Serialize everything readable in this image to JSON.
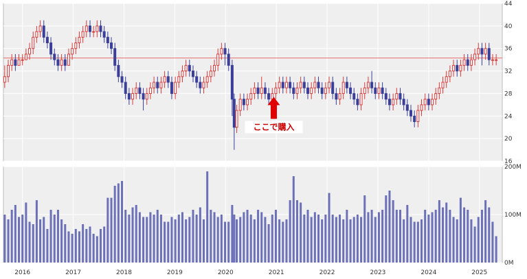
{
  "colors": {
    "panel_bg": "#efefef",
    "grid": "#ffffff",
    "up": "#d93a3a",
    "down": "#3a3f9a",
    "volume": "#6b70b8",
    "ref_line": "#e86b6b",
    "arrow": "#e00000",
    "annotation_text": "#cc0000"
  },
  "chart_data": [
    {
      "type": "candlestick",
      "title": "",
      "ylabel": "",
      "ylim": [
        16,
        44
      ],
      "y_ticks": [
        "16",
        "20",
        "24",
        "28",
        "32",
        "36",
        "40",
        "44"
      ],
      "x_ticks": [
        "2016",
        "2017",
        "2018",
        "2019",
        "2020",
        "2021",
        "2022",
        "2023",
        "2024",
        "2025"
      ],
      "x_range": [
        2015.625,
        2025.45
      ],
      "grid": true,
      "reference_line": 34.3,
      "annotation": {
        "text": "ここで購入",
        "x": 2020.95,
        "y_tip": 27.4
      },
      "candles": [
        [
          2015.65,
          30,
          31,
          33,
          29
        ],
        [
          2015.72,
          31,
          33,
          34,
          30
        ],
        [
          2015.79,
          33,
          34,
          35,
          32
        ],
        [
          2015.86,
          34,
          33,
          35,
          32
        ],
        [
          2015.93,
          33,
          34,
          35,
          33
        ],
        [
          2016.0,
          34,
          34,
          35,
          33
        ],
        [
          2016.07,
          34,
          35,
          36,
          34
        ],
        [
          2016.14,
          35,
          36,
          37,
          34
        ],
        [
          2016.21,
          36,
          38,
          39,
          35
        ],
        [
          2016.28,
          38,
          39,
          40,
          37
        ],
        [
          2016.35,
          39,
          40,
          41,
          38
        ],
        [
          2016.42,
          40,
          38,
          41,
          37
        ],
        [
          2016.49,
          38,
          37,
          39,
          36
        ],
        [
          2016.56,
          37,
          35,
          38,
          34
        ],
        [
          2016.63,
          35,
          34,
          36,
          33
        ],
        [
          2016.7,
          34,
          33,
          35,
          32
        ],
        [
          2016.77,
          33,
          34,
          35,
          32
        ],
        [
          2016.84,
          34,
          33,
          35,
          32
        ],
        [
          2016.91,
          33,
          35,
          36,
          33
        ],
        [
          2016.98,
          35,
          36,
          37,
          34
        ],
        [
          2017.05,
          36,
          37,
          38,
          35
        ],
        [
          2017.12,
          37,
          38,
          39,
          36
        ],
        [
          2017.19,
          38,
          39,
          40,
          37
        ],
        [
          2017.26,
          39,
          40,
          41,
          38
        ],
        [
          2017.33,
          40,
          39,
          41,
          38
        ],
        [
          2017.4,
          39,
          39,
          40,
          38
        ],
        [
          2017.47,
          39,
          40,
          41,
          38
        ],
        [
          2017.54,
          40,
          39,
          41,
          38
        ],
        [
          2017.61,
          39,
          38,
          40,
          37
        ],
        [
          2017.68,
          38,
          37,
          39,
          36
        ],
        [
          2017.75,
          37,
          36,
          38,
          35
        ],
        [
          2017.82,
          36,
          33,
          37,
          32
        ],
        [
          2017.89,
          33,
          31,
          34,
          30
        ],
        [
          2017.96,
          31,
          30,
          32,
          29
        ],
        [
          2018.03,
          30,
          28,
          31,
          27
        ],
        [
          2018.1,
          28,
          27,
          29,
          26
        ],
        [
          2018.17,
          27,
          28,
          29,
          26
        ],
        [
          2018.24,
          28,
          29,
          30,
          27
        ],
        [
          2018.31,
          29,
          28,
          30,
          27
        ],
        [
          2018.38,
          28,
          27,
          29,
          25
        ],
        [
          2018.45,
          27,
          28,
          29,
          26
        ],
        [
          2018.52,
          28,
          29,
          30,
          27
        ],
        [
          2018.59,
          29,
          30,
          31,
          28
        ],
        [
          2018.66,
          30,
          29,
          31,
          28
        ],
        [
          2018.73,
          29,
          30,
          31,
          28
        ],
        [
          2018.8,
          30,
          31,
          32,
          29
        ],
        [
          2018.87,
          31,
          30,
          32,
          29
        ],
        [
          2018.94,
          30,
          28,
          31,
          27
        ],
        [
          2019.01,
          28,
          30,
          31,
          27
        ],
        [
          2019.08,
          30,
          31,
          32,
          29
        ],
        [
          2019.15,
          31,
          32,
          33,
          30
        ],
        [
          2019.22,
          32,
          33,
          34,
          31
        ],
        [
          2019.29,
          33,
          32,
          34,
          31
        ],
        [
          2019.36,
          32,
          31,
          33,
          30
        ],
        [
          2019.43,
          31,
          30,
          32,
          29
        ],
        [
          2019.5,
          30,
          29,
          31,
          28
        ],
        [
          2019.57,
          29,
          30,
          31,
          28
        ],
        [
          2019.64,
          30,
          31,
          32,
          29
        ],
        [
          2019.71,
          31,
          32,
          33,
          30
        ],
        [
          2019.78,
          32,
          33,
          34,
          31
        ],
        [
          2019.85,
          33,
          35,
          36,
          32
        ],
        [
          2019.92,
          35,
          36,
          37,
          34
        ],
        [
          2019.99,
          36,
          35,
          37,
          33
        ],
        [
          2020.06,
          35,
          33,
          36,
          32
        ],
        [
          2020.13,
          33,
          27,
          34,
          24
        ],
        [
          2020.17,
          27,
          22,
          28,
          18
        ],
        [
          2020.22,
          22,
          25,
          26,
          21
        ],
        [
          2020.29,
          25,
          27,
          28,
          24
        ],
        [
          2020.36,
          27,
          26,
          28,
          25
        ],
        [
          2020.43,
          26,
          27,
          28,
          25
        ],
        [
          2020.5,
          27,
          28,
          29,
          26
        ],
        [
          2020.57,
          28,
          29,
          30,
          27
        ],
        [
          2020.64,
          29,
          28,
          30,
          27
        ],
        [
          2020.71,
          28,
          29,
          31,
          27
        ],
        [
          2020.78,
          29,
          28,
          30,
          27
        ],
        [
          2020.85,
          28,
          27,
          29,
          26
        ],
        [
          2020.92,
          27,
          28,
          29,
          26
        ],
        [
          2020.99,
          28,
          29,
          30,
          27
        ],
        [
          2021.06,
          29,
          30,
          31,
          28
        ],
        [
          2021.13,
          30,
          29,
          31,
          28
        ],
        [
          2021.2,
          29,
          30,
          31,
          28
        ],
        [
          2021.27,
          30,
          29,
          31,
          28
        ],
        [
          2021.34,
          29,
          28,
          30,
          27
        ],
        [
          2021.41,
          28,
          29,
          30,
          27
        ],
        [
          2021.48,
          29,
          30,
          31,
          28
        ],
        [
          2021.55,
          30,
          29,
          31,
          28
        ],
        [
          2021.62,
          29,
          28,
          30,
          27
        ],
        [
          2021.69,
          28,
          29,
          30,
          27
        ],
        [
          2021.76,
          29,
          30,
          31,
          28
        ],
        [
          2021.83,
          30,
          29,
          31,
          28
        ],
        [
          2021.9,
          29,
          28,
          30,
          27
        ],
        [
          2021.97,
          28,
          29,
          30,
          27
        ],
        [
          2022.04,
          29,
          30,
          31,
          28
        ],
        [
          2022.11,
          30,
          28,
          31,
          27
        ],
        [
          2022.18,
          28,
          27,
          29,
          26
        ],
        [
          2022.25,
          27,
          28,
          29,
          26
        ],
        [
          2022.32,
          28,
          30,
          31,
          27
        ],
        [
          2022.39,
          30,
          29,
          31,
          28
        ],
        [
          2022.46,
          29,
          28,
          30,
          27
        ],
        [
          2022.53,
          28,
          27,
          29,
          26
        ],
        [
          2022.6,
          27,
          26,
          28,
          25
        ],
        [
          2022.67,
          26,
          28,
          29,
          25
        ],
        [
          2022.74,
          28,
          29,
          30,
          27
        ],
        [
          2022.81,
          29,
          30,
          31,
          28
        ],
        [
          2022.88,
          30,
          29,
          32,
          28
        ],
        [
          2022.95,
          29,
          28,
          30,
          27
        ],
        [
          2023.02,
          28,
          29,
          30,
          27
        ],
        [
          2023.09,
          29,
          28,
          30,
          27
        ],
        [
          2023.16,
          28,
          27,
          29,
          26
        ],
        [
          2023.23,
          27,
          26,
          28,
          25
        ],
        [
          2023.3,
          26,
          27,
          28,
          25
        ],
        [
          2023.37,
          27,
          28,
          29,
          26
        ],
        [
          2023.44,
          28,
          27,
          29,
          26
        ],
        [
          2023.51,
          27,
          26,
          28,
          25
        ],
        [
          2023.58,
          26,
          25,
          27,
          24
        ],
        [
          2023.65,
          25,
          24,
          26,
          23
        ],
        [
          2023.72,
          24,
          23,
          25,
          22
        ],
        [
          2023.79,
          23,
          25,
          26,
          22
        ],
        [
          2023.86,
          25,
          26,
          27,
          24
        ],
        [
          2023.93,
          26,
          27,
          28,
          25
        ],
        [
          2024.0,
          27,
          26,
          28,
          25
        ],
        [
          2024.07,
          26,
          27,
          28,
          25
        ],
        [
          2024.14,
          27,
          28,
          29,
          26
        ],
        [
          2024.21,
          28,
          29,
          30,
          27
        ],
        [
          2024.28,
          29,
          30,
          31,
          28
        ],
        [
          2024.35,
          30,
          31,
          32,
          29
        ],
        [
          2024.42,
          31,
          32,
          33,
          30
        ],
        [
          2024.49,
          32,
          33,
          34,
          31
        ],
        [
          2024.56,
          33,
          32,
          34,
          31
        ],
        [
          2024.63,
          32,
          33,
          34,
          31
        ],
        [
          2024.7,
          33,
          34,
          35,
          32
        ],
        [
          2024.77,
          34,
          33,
          35,
          32
        ],
        [
          2024.84,
          33,
          34,
          35,
          32
        ],
        [
          2024.91,
          34,
          35,
          36,
          33
        ],
        [
          2024.98,
          35,
          36,
          37,
          34
        ],
        [
          2025.05,
          36,
          35,
          37,
          33
        ],
        [
          2025.12,
          35,
          36,
          37,
          34
        ],
        [
          2025.19,
          36,
          34,
          37,
          33
        ],
        [
          2025.26,
          34,
          34,
          35,
          33
        ],
        [
          2025.33,
          34,
          34,
          35,
          33
        ]
      ]
    },
    {
      "type": "bar",
      "title": "",
      "ylabel": "",
      "ylim": [
        0,
        200
      ],
      "y_ticks": [
        "0M",
        "100M",
        "200M"
      ],
      "grid": true,
      "x": [
        2015.65,
        2015.72,
        2015.79,
        2015.86,
        2015.93,
        2016.0,
        2016.07,
        2016.14,
        2016.21,
        2016.28,
        2016.35,
        2016.42,
        2016.49,
        2016.56,
        2016.63,
        2016.7,
        2016.77,
        2016.84,
        2016.91,
        2016.98,
        2017.05,
        2017.12,
        2017.19,
        2017.26,
        2017.33,
        2017.4,
        2017.47,
        2017.54,
        2017.61,
        2017.68,
        2017.75,
        2017.82,
        2017.89,
        2017.96,
        2018.03,
        2018.1,
        2018.17,
        2018.24,
        2018.31,
        2018.38,
        2018.45,
        2018.52,
        2018.59,
        2018.66,
        2018.73,
        2018.8,
        2018.87,
        2018.94,
        2019.01,
        2019.08,
        2019.15,
        2019.22,
        2019.29,
        2019.36,
        2019.43,
        2019.5,
        2019.57,
        2019.64,
        2019.71,
        2019.78,
        2019.85,
        2019.92,
        2019.99,
        2020.06,
        2020.13,
        2020.17,
        2020.22,
        2020.29,
        2020.36,
        2020.43,
        2020.5,
        2020.57,
        2020.64,
        2020.71,
        2020.78,
        2020.85,
        2020.92,
        2020.99,
        2021.06,
        2021.13,
        2021.2,
        2021.27,
        2021.34,
        2021.41,
        2021.48,
        2021.55,
        2021.62,
        2021.69,
        2021.76,
        2021.83,
        2021.9,
        2021.97,
        2022.04,
        2022.11,
        2022.18,
        2022.25,
        2022.32,
        2022.39,
        2022.46,
        2022.53,
        2022.6,
        2022.67,
        2022.74,
        2022.81,
        2022.88,
        2022.95,
        2023.02,
        2023.09,
        2023.16,
        2023.23,
        2023.3,
        2023.37,
        2023.44,
        2023.51,
        2023.58,
        2023.65,
        2023.72,
        2023.79,
        2023.86,
        2023.93,
        2024.0,
        2024.07,
        2024.14,
        2024.21,
        2024.28,
        2024.35,
        2024.42,
        2024.49,
        2024.56,
        2024.63,
        2024.7,
        2024.77,
        2024.84,
        2024.91,
        2024.98,
        2025.05,
        2025.12,
        2025.19,
        2025.26,
        2025.33
      ],
      "values": [
        100,
        90,
        110,
        120,
        95,
        100,
        125,
        85,
        80,
        130,
        90,
        95,
        70,
        110,
        100,
        110,
        90,
        80,
        65,
        60,
        70,
        65,
        80,
        70,
        75,
        60,
        55,
        70,
        75,
        135,
        135,
        160,
        165,
        170,
        110,
        100,
        115,
        120,
        105,
        95,
        95,
        105,
        100,
        110,
        100,
        85,
        85,
        95,
        90,
        100,
        105,
        90,
        95,
        110,
        100,
        115,
        90,
        190,
        110,
        105,
        95,
        100,
        85,
        85,
        120,
        100,
        90,
        95,
        105,
        110,
        100,
        90,
        110,
        105,
        95,
        80,
        100,
        110,
        90,
        85,
        90,
        130,
        180,
        130,
        125,
        100,
        110,
        95,
        105,
        100,
        90,
        100,
        145,
        100,
        95,
        100,
        90,
        110,
        90,
        95,
        100,
        95,
        140,
        105,
        110,
        95,
        105,
        110,
        140,
        150,
        130,
        110,
        110,
        90,
        120,
        95,
        85,
        85,
        90,
        110,
        100,
        105,
        110,
        130,
        115,
        125,
        110,
        95,
        90,
        135,
        115,
        110,
        90,
        75,
        95,
        110,
        130,
        115,
        85,
        55
      ]
    }
  ]
}
